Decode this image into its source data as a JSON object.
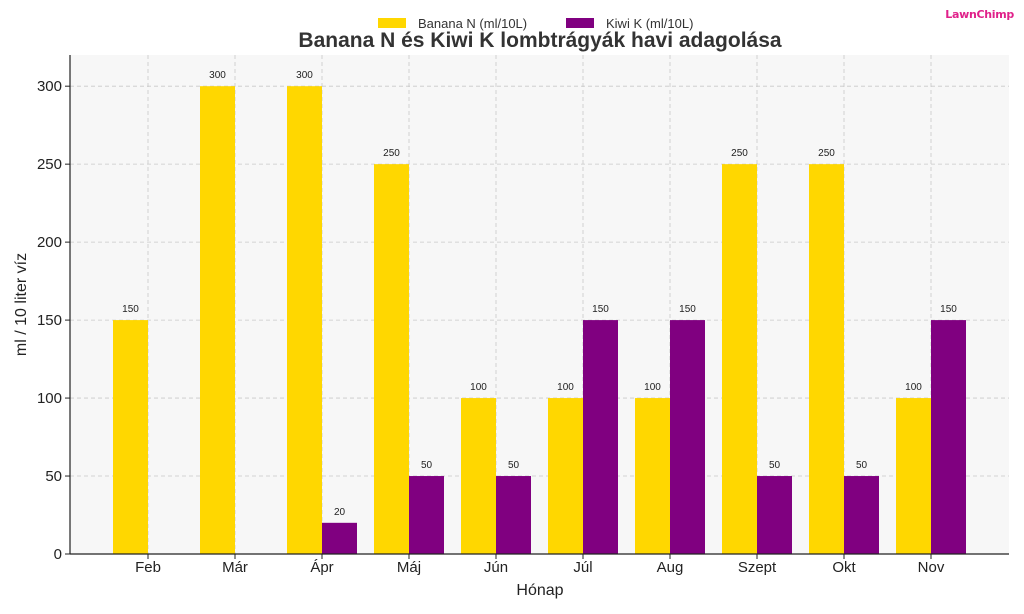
{
  "logo": "LawnChimp",
  "chart_data": {
    "type": "bar",
    "title": "Banana N és Kiwi K lombtrágyák havi adagolása",
    "xlabel": "Hónap",
    "ylabel": "ml / 10 liter víz",
    "categories": [
      "Feb",
      "Már",
      "Ápr",
      "Máj",
      "Jún",
      "Júl",
      "Aug",
      "Szept",
      "Okt",
      "Nov"
    ],
    "series": [
      {
        "name": "Banana N (ml/10L)",
        "color": "#FFD700",
        "values": [
          150,
          300,
          300,
          250,
          100,
          100,
          100,
          250,
          250,
          100
        ]
      },
      {
        "name": "Kiwi K (ml/10L)",
        "color": "#800080",
        "values": [
          0,
          0,
          20,
          50,
          50,
          150,
          150,
          50,
          50,
          150
        ]
      }
    ],
    "ylim": [
      0,
      320
    ],
    "yticks": [
      0,
      50,
      100,
      150,
      200,
      250,
      300
    ],
    "grid": true,
    "legend": "top-center"
  }
}
